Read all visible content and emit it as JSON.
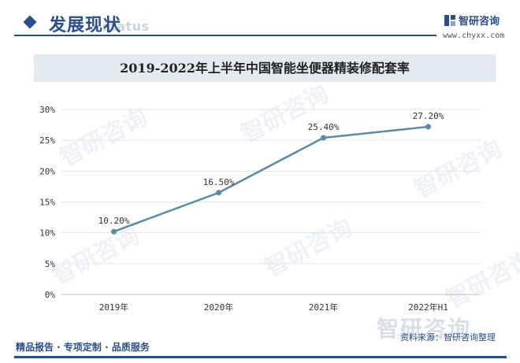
{
  "header": {
    "section_title": "发展现状",
    "section_ghost": "status",
    "logo_text": "智研咨询",
    "logo_url": "www.chyxx.com"
  },
  "footer": {
    "left_text": "精品报告 · 专项定制 · 品质服务",
    "right_text": "资料来源：智研咨询整理",
    "watermark_text": "智研咨询"
  },
  "colors": {
    "brand": "#2a4e8c",
    "line": "#5b8aa6",
    "title_band": "#e5eaf1"
  },
  "chart_data": {
    "type": "line",
    "title": "2019-2022年上半年中国智能坐便器精装修配套率",
    "categories": [
      "2019年",
      "2020年",
      "2021年",
      "2022年H1"
    ],
    "series": [
      {
        "values": [
          10.2,
          16.5,
          25.4,
          27.2
        ]
      }
    ],
    "data_labels": [
      "10.20%",
      "16.50%",
      "25.40%",
      "27.20%"
    ],
    "y_ticks": [
      "0%",
      "5%",
      "10%",
      "15%",
      "20%",
      "25%",
      "30%"
    ],
    "ylim": [
      0,
      30
    ],
    "grid": true,
    "legend": "none"
  }
}
